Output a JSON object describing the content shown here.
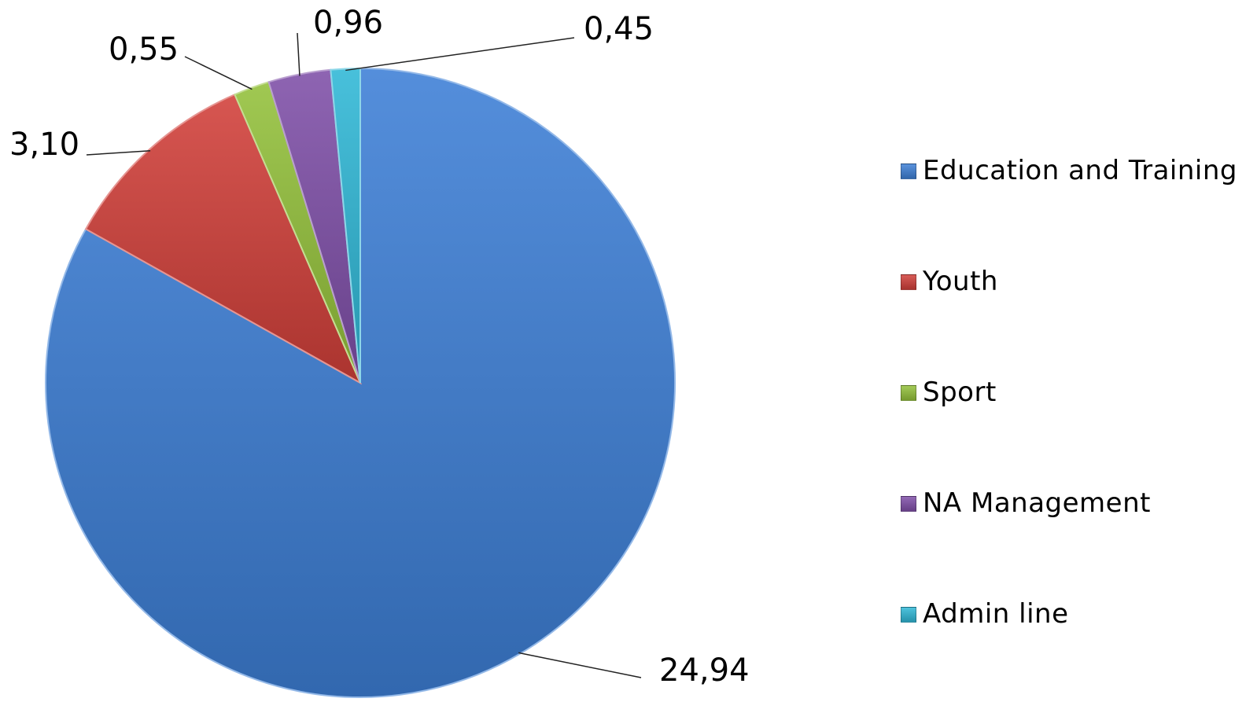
{
  "chart_data": {
    "type": "pie",
    "title": "",
    "start_angle_deg": 0,
    "direction": "clockwise",
    "legend_position": "right",
    "categories": [
      "Education and Training",
      "Youth",
      "Sport",
      "NA Management",
      "Admin line"
    ],
    "values": [
      24.94,
      3.1,
      0.55,
      0.96,
      0.45
    ],
    "labels": [
      "24,94",
      "3,10",
      "0,55",
      "0,96",
      "0,45"
    ],
    "colors": [
      "#3d7fd6",
      "#d13f39",
      "#93c13a",
      "#7f4fa8",
      "#2fb7d6"
    ]
  }
}
